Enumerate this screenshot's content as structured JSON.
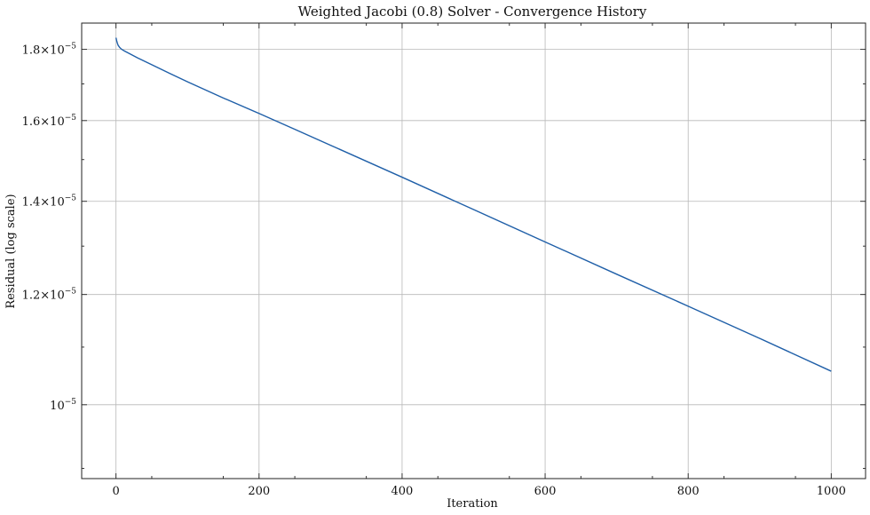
{
  "chart_data": {
    "type": "line",
    "title": "Weighted Jacobi (0.8) Solver - Convergence History",
    "xlabel": "Iteration",
    "ylabel": "Residual (log scale)",
    "x_scale": "linear",
    "y_scale": "log",
    "xlim": [
      -48,
      1048
    ],
    "ylim": [
      8.85e-06,
      1.88e-05
    ],
    "grid": true,
    "x_ticks": [
      {
        "value": 0,
        "label": "0"
      },
      {
        "value": 200,
        "label": "200"
      },
      {
        "value": 400,
        "label": "400"
      },
      {
        "value": 600,
        "label": "600"
      },
      {
        "value": 800,
        "label": "800"
      },
      {
        "value": 1000,
        "label": "1000"
      }
    ],
    "y_ticks": [
      {
        "value": 1e-05,
        "mantissa": "",
        "exponent": "−5"
      },
      {
        "value": 1.2e-05,
        "mantissa": "1.2",
        "exponent": "−5"
      },
      {
        "value": 1.4e-05,
        "mantissa": "1.4",
        "exponent": "−5"
      },
      {
        "value": 1.6e-05,
        "mantissa": "1.6",
        "exponent": "−5"
      },
      {
        "value": 1.8e-05,
        "mantissa": "1.8",
        "exponent": "−5"
      }
    ],
    "series": [
      {
        "color": "#1f5fa8",
        "x": [
          0,
          1,
          2,
          3,
          5,
          8,
          12,
          20,
          30,
          50,
          75,
          100,
          150,
          200,
          250,
          300,
          400,
          500,
          600,
          700,
          800,
          900,
          1000
        ],
        "y": [
          1.835e-05,
          1.825e-05,
          1.818e-05,
          1.812e-05,
          1.806e-05,
          1.8e-05,
          1.795e-05,
          1.786e-05,
          1.775e-05,
          1.755e-05,
          1.73e-05,
          1.706e-05,
          1.661e-05,
          1.619e-05,
          1.577e-05,
          1.536e-05,
          1.457e-05,
          1.381e-05,
          1.309e-05,
          1.241e-05,
          1.177e-05,
          1.116e-05,
          1.057e-05
        ]
      }
    ]
  }
}
